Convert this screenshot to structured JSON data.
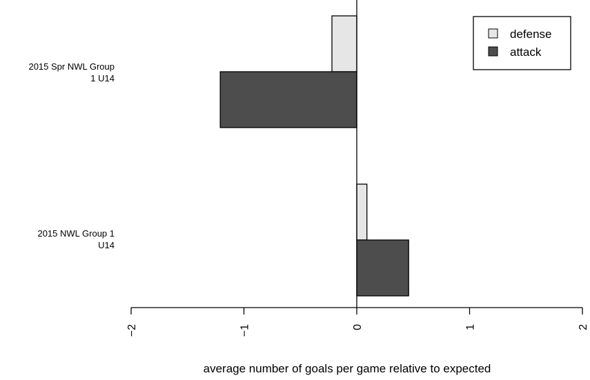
{
  "chart_data": {
    "type": "bar",
    "orientation": "horizontal",
    "categories": [
      "2015 Spr NWL Group 1 U14",
      "2015 NWL Group 1 U14"
    ],
    "category_label_lines": [
      [
        "2015 Spr NWL Group",
        "1 U14"
      ],
      [
        "2015 NWL Group 1",
        "U14"
      ]
    ],
    "series": [
      {
        "name": "defense",
        "color": "#e6e6e6",
        "values": [
          -0.22,
          0.09
        ]
      },
      {
        "name": "attack",
        "color": "#4d4d4d",
        "values": [
          -1.21,
          0.46
        ]
      }
    ],
    "xlabel": "average number of goals per game relative to expected",
    "ylabel": "",
    "xlim": [
      -2,
      2
    ],
    "xticks": [
      -2,
      -1,
      0,
      1,
      2
    ],
    "legend_position": "top-right",
    "grid": false
  }
}
